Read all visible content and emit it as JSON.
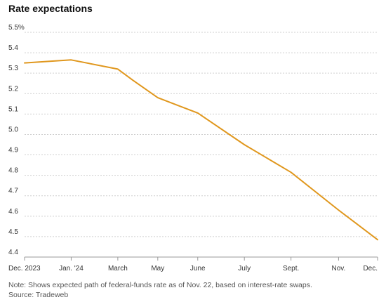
{
  "chart_data": {
    "type": "line",
    "title": "Rate expectations",
    "xlabel": "",
    "ylabel": "",
    "x_ticks": [
      "Dec. 2023",
      "Jan. '24",
      "March",
      "May",
      "June",
      "July",
      "Sept.",
      "Nov.",
      "Dec."
    ],
    "y_ticks": [
      "5.5%",
      "5.4",
      "5.3",
      "5.2",
      "5.1",
      "5.0",
      "4.9",
      "4.8",
      "4.7",
      "4.6",
      "4.5",
      "4.4"
    ],
    "ylim": [
      4.4,
      5.5
    ],
    "grid": true,
    "series": [
      {
        "color": "#e0971d",
        "points": [
          [
            "2023-12-13",
            5.35
          ],
          [
            "2024-01-31",
            5.365
          ],
          [
            "2024-03-20",
            5.32
          ],
          [
            "2024-04-05",
            5.265
          ],
          [
            "2024-05-01",
            5.18
          ],
          [
            "2024-06-12",
            5.105
          ],
          [
            "2024-07-31",
            4.95
          ],
          [
            "2024-09-18",
            4.815
          ],
          [
            "2024-11-07",
            4.63
          ],
          [
            "2024-12-18",
            4.485
          ]
        ]
      }
    ]
  },
  "footer": {
    "note": "Note: Shows expected path of federal-funds rate as of Nov. 22, based on interest-rate swaps.",
    "source": "Source: Tradeweb"
  }
}
